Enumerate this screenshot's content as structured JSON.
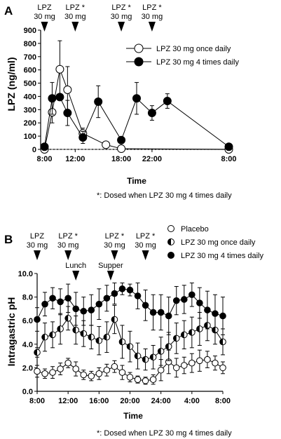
{
  "chart_data": [
    {
      "panel": "A",
      "type": "line",
      "ylabel": "LPZ (ng/ml)",
      "xlabel": "Time",
      "ylim": [
        0,
        900
      ],
      "yticks": [
        "0",
        "100",
        "200",
        "300",
        "400",
        "500",
        "600",
        "700",
        "800",
        "900"
      ],
      "yticks_values": [
        0,
        100,
        200,
        300,
        400,
        500,
        600,
        700,
        800,
        900
      ],
      "xlim": [
        7.5,
        32.5
      ],
      "xticks": [
        "8:00",
        "12:00",
        "18:00",
        "22:00",
        "8:00"
      ],
      "xticks_hours": [
        8,
        12,
        18,
        22,
        32
      ],
      "doses": [
        {
          "hour": 8,
          "line1": "LPZ",
          "line2": "30 mg"
        },
        {
          "hour": 12,
          "line1": "LPZ *",
          "line2": "30 mg"
        },
        {
          "hour": 18,
          "line1": "LPZ *",
          "line2": "30 mg"
        },
        {
          "hour": 22,
          "line1": "LPZ *",
          "line2": "30 mg"
        }
      ],
      "legend_position": "top-right",
      "series": [
        {
          "name": "LPZ 30 mg once daily",
          "marker": "open",
          "x": [
            8,
            9,
            10,
            11,
            13,
            16,
            18,
            32
          ],
          "y": [
            0,
            280,
            605,
            450,
            120,
            35,
            5,
            0
          ],
          "err": [
            0,
            80,
            215,
            175,
            40,
            0,
            0,
            0
          ]
        },
        {
          "name": "LPZ 30 mg 4 times daily",
          "marker": "filled",
          "x": [
            8,
            9,
            10,
            11,
            13,
            15,
            18,
            20,
            22,
            24,
            32
          ],
          "y": [
            20,
            385,
            395,
            275,
            90,
            360,
            70,
            385,
            275,
            365,
            20
          ],
          "err": [
            0,
            120,
            0,
            95,
            45,
            120,
            0,
            120,
            55,
            55,
            0
          ]
        }
      ],
      "footnote": "*: Dosed when LPZ 30 mg 4 times daily"
    },
    {
      "panel": "B",
      "type": "line",
      "ylabel": "Intragastric pH",
      "xlabel": "Time",
      "ylim": [
        0,
        10
      ],
      "yticks": [
        "0.0",
        "2.0",
        "4.0",
        "6.0",
        "8.0",
        "10.0"
      ],
      "yticks_values": [
        0,
        2,
        4,
        6,
        8,
        10
      ],
      "xlim": [
        8,
        32
      ],
      "xticks": [
        "8:00",
        "12:00",
        "16:00",
        "20:00",
        "24:00",
        "4:00",
        "8:00"
      ],
      "xticks_hours": [
        8,
        12,
        16,
        20,
        24,
        28,
        32
      ],
      "doses": [
        {
          "hour": 8,
          "line1": "LPZ",
          "line2": "30 mg"
        },
        {
          "hour": 12,
          "line1": "LPZ *",
          "line2": "30 mg"
        },
        {
          "hour": 18,
          "line1": "LPZ *",
          "line2": "30 mg"
        },
        {
          "hour": 22,
          "line1": "LPZ *",
          "line2": "30 mg"
        }
      ],
      "meals": [
        {
          "hour": 13,
          "label": "Lunch"
        },
        {
          "hour": 17.5,
          "label": "Supper"
        }
      ],
      "legend_position": "top-right",
      "series": [
        {
          "name": "Placebo",
          "marker": "open",
          "x": [
            8,
            9,
            10,
            11,
            12,
            13,
            14,
            15,
            16,
            17,
            18,
            19,
            20,
            21,
            22,
            23,
            24,
            25,
            26,
            27,
            28,
            29,
            30,
            31,
            32
          ],
          "y": [
            1.7,
            1.5,
            1.6,
            1.9,
            2.4,
            1.9,
            1.4,
            1.3,
            1.5,
            1.8,
            2.1,
            1.6,
            1.2,
            1.0,
            0.9,
            1.0,
            1.8,
            2.5,
            2.0,
            2.2,
            2.4,
            2.6,
            2.7,
            2.4,
            2.0
          ],
          "err": [
            0.5,
            0.4,
            0.5,
            0.5,
            0.4,
            0.6,
            0.4,
            0.4,
            0.5,
            0.5,
            0.5,
            0.6,
            0.4,
            0.3,
            0.3,
            0.4,
            0.9,
            1.0,
            0.8,
            0.7,
            0.8,
            0.9,
            0.7,
            0.6,
            0.5
          ]
        },
        {
          "name": "LPZ 30 mg once daily",
          "marker": "half",
          "x": [
            8,
            9,
            10,
            11,
            12,
            13,
            14,
            15,
            16,
            17,
            18,
            19,
            20,
            21,
            22,
            23,
            24,
            25,
            26,
            27,
            28,
            29,
            30,
            31,
            32
          ],
          "y": [
            3.3,
            4.6,
            4.8,
            5.3,
            6.2,
            5.2,
            4.9,
            4.6,
            4.3,
            4.6,
            6.1,
            4.2,
            3.8,
            3.0,
            2.7,
            2.9,
            3.4,
            3.8,
            4.5,
            4.8,
            5.0,
            5.3,
            5.6,
            5.2,
            4.2
          ],
          "err": [
            0.4,
            1.2,
            1.1,
            1.3,
            1.0,
            1.2,
            1.1,
            1.0,
            1.2,
            1.3,
            1.2,
            1.4,
            1.3,
            1.1,
            0.9,
            1.0,
            1.2,
            1.2,
            1.3,
            1.2,
            1.3,
            1.4,
            1.3,
            1.2,
            1.1
          ]
        },
        {
          "name": "LPZ 30 mg 4 times daily",
          "marker": "filled",
          "x": [
            8,
            9,
            10,
            11,
            12,
            13,
            14,
            15,
            16,
            17,
            18,
            19,
            20,
            21,
            22,
            23,
            24,
            25,
            26,
            27,
            28,
            29,
            30,
            31,
            32
          ],
          "y": [
            6.1,
            7.4,
            7.9,
            7.6,
            7.9,
            7.0,
            6.8,
            6.9,
            7.4,
            7.9,
            8.3,
            8.7,
            8.6,
            8.1,
            7.3,
            6.7,
            6.7,
            6.4,
            7.7,
            7.8,
            8.2,
            7.5,
            6.9,
            6.6,
            6.4
          ],
          "err": [
            1.0,
            1.0,
            0.9,
            1.1,
            1.2,
            1.4,
            1.2,
            1.3,
            1.3,
            1.1,
            0.9,
            0.5,
            0.5,
            1.1,
            1.3,
            1.5,
            1.5,
            1.6,
            1.2,
            1.2,
            1.0,
            1.3,
            1.6,
            1.6,
            1.6
          ]
        }
      ],
      "footnote": "*: Dosed when LPZ 30 mg 4 times daily"
    }
  ]
}
